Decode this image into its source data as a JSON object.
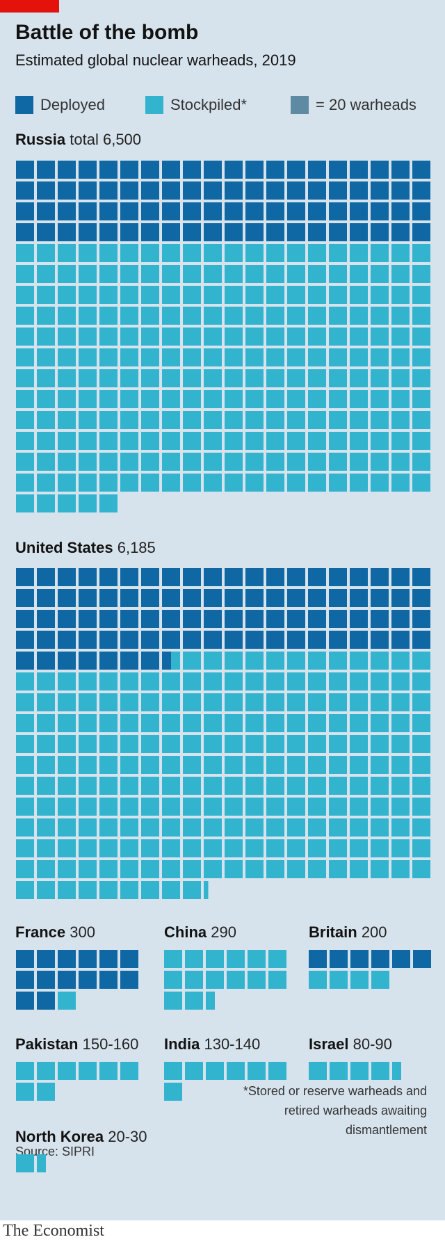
{
  "title": "Battle of the bomb",
  "subtitle": "Estimated global nuclear warheads, 2019",
  "legend": {
    "deployed": "Deployed",
    "stockpiled": "Stockpiled*",
    "unit": "= 20 warheads"
  },
  "colors": {
    "deployed": "#0f68a3",
    "stockpiled": "#32b4cf",
    "unit": "#5f8aa4",
    "brand_red": "#e3120b"
  },
  "footnote": "*Stored or reserve warheads and retired warheads awaiting dismantlement",
  "source": "Source: SIPRI",
  "brand": "The Economist",
  "chart_data": {
    "type": "waffle",
    "unit_warheads": 20,
    "countries": [
      {
        "name": "Russia",
        "value_label": "total 6,500",
        "deployed_squares": 80,
        "stockpiled_squares": 245
      },
      {
        "name": "United States",
        "value_label": "6,185",
        "deployed_squares": 87.5,
        "stockpiled_squares": 221.75
      },
      {
        "name": "France",
        "value_label": "300",
        "deployed_squares": 14,
        "stockpiled_squares": 1
      },
      {
        "name": "China",
        "value_label": "290",
        "deployed_squares": 0,
        "stockpiled_squares": 14.5
      },
      {
        "name": "Britain",
        "value_label": "200",
        "deployed_squares": 6,
        "stockpiled_squares": 4
      },
      {
        "name": "Pakistan",
        "value_label": "150-160",
        "deployed_squares": 0,
        "stockpiled_squares": 8
      },
      {
        "name": "India",
        "value_label": "130-140",
        "deployed_squares": 0,
        "stockpiled_squares": 7
      },
      {
        "name": "Israel",
        "value_label": "80-90",
        "deployed_squares": 0,
        "stockpiled_squares": 4.5
      },
      {
        "name": "North Korea",
        "value_label": "20-30",
        "deployed_squares": 0,
        "stockpiled_squares": 1.5
      }
    ]
  }
}
